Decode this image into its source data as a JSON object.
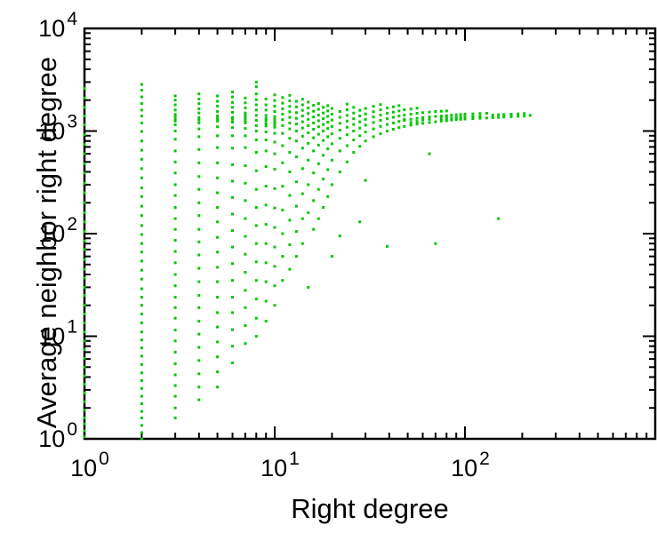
{
  "figure": {
    "background": "#ffffff"
  },
  "chart_data": {
    "type": "scatter",
    "title": "",
    "xlabel": "Right degree",
    "ylabel": "Average neighbor right degree",
    "x_scale": "log",
    "y_scale": "log",
    "xlim": [
      1,
      1000
    ],
    "ylim": [
      1,
      10000
    ],
    "grid": false,
    "legend": "none",
    "axis_color": "#000000",
    "marker": {
      "shape": "square",
      "size": 3,
      "color": "#00C800"
    },
    "x_ticks": [
      {
        "value": 1,
        "base": "10",
        "exp": "0"
      },
      {
        "value": 10,
        "base": "10",
        "exp": "1"
      },
      {
        "value": 100,
        "base": "10",
        "exp": "2"
      }
    ],
    "y_ticks": [
      {
        "value": 1,
        "base": "10",
        "exp": "0"
      },
      {
        "value": 10,
        "base": "10",
        "exp": "1"
      },
      {
        "value": 100,
        "base": "10",
        "exp": "2"
      },
      {
        "value": 1000,
        "base": "10",
        "exp": "3"
      },
      {
        "value": 10000,
        "base": "10",
        "exp": "4"
      }
    ],
    "minor_ticks_per_decade": [
      2,
      3,
      4,
      5,
      6,
      7,
      8,
      9
    ],
    "points_by_x": [
      {
        "x": 1,
        "y": [
          1.05,
          1.2,
          1.4,
          1.6,
          1.9,
          2.3,
          2.8,
          3.4,
          4.1,
          5,
          6.1,
          7.4,
          9,
          11,
          13.5,
          16.5,
          20,
          25,
          30,
          37,
          45,
          56,
          70,
          85,
          105,
          130,
          160,
          200,
          250,
          310,
          390,
          480,
          600,
          740,
          920,
          1150,
          1400,
          1700,
          2100,
          2600
        ]
      },
      {
        "x": 2,
        "y": [
          1,
          1.15,
          1.35,
          1.6,
          1.85,
          2.2,
          2.6,
          3.1,
          3.7,
          4.4,
          5.3,
          6.4,
          7.7,
          9.2,
          11,
          13.5,
          16.5,
          20,
          24,
          29,
          36,
          44,
          54,
          66,
          80,
          98,
          120,
          150,
          185,
          230,
          280,
          350,
          430,
          530,
          650,
          800,
          990,
          1200,
          1400,
          1600,
          1850,
          2150,
          2500,
          2850
        ]
      },
      {
        "x": 3,
        "y": [
          1.6,
          2,
          2.6,
          3.3,
          4.2,
          5.4,
          7,
          9,
          11.5,
          15,
          19,
          24,
          31,
          40,
          52,
          67,
          86,
          110,
          140,
          180,
          235,
          300,
          390,
          500,
          640,
          830,
          1000,
          1150,
          1300,
          1450,
          1600,
          1800,
          2000,
          2200,
          1250,
          1380
        ]
      },
      {
        "x": 4,
        "y": [
          2.4,
          3.2,
          4.3,
          5.8,
          7.8,
          10.5,
          14,
          19,
          25,
          34,
          46,
          62,
          83,
          110,
          150,
          200,
          270,
          360,
          490,
          660,
          880,
          1050,
          1200,
          1350,
          1500,
          1650,
          1850,
          2050,
          2300,
          1280
        ]
      },
      {
        "x": 5,
        "y": [
          3.2,
          4.5,
          6.3,
          8.8,
          12.3,
          17,
          24,
          34,
          47,
          66,
          92,
          130,
          180,
          250,
          350,
          490,
          690,
          900,
          1100,
          1250,
          1400,
          1550,
          1750,
          1950,
          2200,
          1320
        ]
      },
      {
        "x": 6,
        "y": [
          5.5,
          8,
          11.6,
          17,
          24,
          35,
          51,
          74,
          107,
          155,
          225,
          325,
          470,
          680,
          900,
          1080,
          1220,
          1360,
          1520,
          1700,
          1900,
          2150,
          2400,
          1300
        ]
      },
      {
        "x": 7,
        "y": [
          8.5,
          12.7,
          19,
          28,
          42,
          63,
          94,
          140,
          210,
          310,
          460,
          690,
          900,
          1060,
          1200,
          1340,
          1500,
          1680,
          1880,
          2100,
          1270,
          1420
        ]
      },
      {
        "x": 8,
        "y": [
          10,
          15,
          23,
          35,
          53,
          80,
          120,
          180,
          270,
          410,
          620,
          820,
          1000,
          1130,
          1270,
          1420,
          1600,
          1800,
          2020,
          2300,
          2700,
          3000
        ]
      },
      {
        "x": 9,
        "y": [
          14,
          22,
          34,
          52,
          80,
          123,
          190,
          290,
          450,
          640,
          820,
          980,
          1120,
          1260,
          1420,
          1600,
          1800,
          2050,
          1330,
          1180
        ]
      },
      {
        "x": 10,
        "y": [
          20,
          31,
          48,
          74,
          115,
          178,
          275,
          425,
          600,
          780,
          950,
          1090,
          1230,
          1380,
          1550,
          1750,
          1980,
          2250,
          1300,
          1160
        ]
      },
      {
        "x": 11,
        "y": [
          35,
          60,
          100,
          170,
          290,
          490,
          720,
          950,
          1130,
          1290,
          1460,
          1650,
          1870,
          2120
        ]
      },
      {
        "x": 12,
        "y": [
          45,
          78,
          135,
          235,
          400,
          620,
          850,
          1050,
          1200,
          1360,
          1540,
          1740,
          1970,
          2230
        ]
      },
      {
        "x": 13,
        "y": [
          60,
          105,
          185,
          320,
          560,
          800,
          1000,
          1170,
          1330,
          1510,
          1720,
          1950
        ]
      },
      {
        "x": 14,
        "y": [
          80,
          140,
          245,
          430,
          680,
          890,
          1070,
          1230,
          1400,
          1590,
          1800,
          2040
        ]
      },
      {
        "x": 15,
        "y": [
          30,
          160,
          300,
          520,
          760,
          960,
          1130,
          1300,
          1480,
          1680,
          1910
        ]
      },
      {
        "x": 16,
        "y": [
          110,
          210,
          390,
          640,
          860,
          1040,
          1200,
          1370,
          1560,
          1780
        ]
      },
      {
        "x": 17,
        "y": [
          140,
          270,
          480,
          730,
          930,
          1100,
          1260,
          1430,
          1630,
          1850
        ]
      },
      {
        "x": 18,
        "y": [
          180,
          340,
          580,
          810,
          1000,
          1160,
          1320,
          1500,
          1700
        ]
      },
      {
        "x": 19,
        "y": [
          230,
          420,
          670,
          880,
          1060,
          1220,
          1390,
          1570,
          1770
        ]
      },
      {
        "x": 20,
        "y": [
          60,
          300,
          520,
          750,
          940,
          1110,
          1280,
          1460,
          1660
        ]
      },
      {
        "x": 22,
        "y": [
          95,
          400,
          640,
          850,
          1020,
          1190,
          1360,
          1550
        ]
      },
      {
        "x": 24,
        "y": [
          500,
          720,
          920,
          1090,
          1250,
          1420,
          1610,
          1830
        ]
      },
      {
        "x": 26,
        "y": [
          620,
          820,
          1000,
          1160,
          1320,
          1500,
          1700
        ]
      },
      {
        "x": 28,
        "y": [
          130,
          710,
          900,
          1070,
          1230,
          1400,
          1590
        ]
      },
      {
        "x": 30,
        "y": [
          330,
          800,
          980,
          1140,
          1300,
          1470,
          1660
        ]
      },
      {
        "x": 33,
        "y": [
          880,
          1050,
          1210,
          1370,
          1540,
          1740
        ]
      },
      {
        "x": 36,
        "y": [
          940,
          1110,
          1270,
          1430,
          1610,
          1810
        ]
      },
      {
        "x": 39,
        "y": [
          75,
          1000,
          1160,
          1320,
          1490,
          1680
        ]
      },
      {
        "x": 42,
        "y": [
          1040,
          1200,
          1360,
          1530,
          1720
        ]
      },
      {
        "x": 45,
        "y": [
          1080,
          1240,
          1400,
          1570,
          1770
        ]
      },
      {
        "x": 48,
        "y": [
          1110,
          1270,
          1430,
          1610,
          1300
        ]
      },
      {
        "x": 52,
        "y": [
          1140,
          1300,
          1460,
          1640,
          1210
        ]
      },
      {
        "x": 56,
        "y": [
          1170,
          1330,
          1490,
          1670,
          1240
        ]
      },
      {
        "x": 60,
        "y": [
          1190,
          1350,
          1510,
          1280
        ]
      },
      {
        "x": 65,
        "y": [
          600,
          1210,
          1370,
          1530,
          1300
        ]
      },
      {
        "x": 70,
        "y": [
          80,
          1230,
          1390,
          1550
        ]
      },
      {
        "x": 75,
        "y": [
          1250,
          1400,
          1560,
          1320
        ]
      },
      {
        "x": 80,
        "y": [
          1260,
          1410,
          1570,
          1330
        ]
      },
      {
        "x": 85,
        "y": [
          1280,
          1430,
          1340
        ]
      },
      {
        "x": 90,
        "y": [
          1290,
          1440,
          1350
        ]
      },
      {
        "x": 95,
        "y": [
          1300,
          1450,
          1360
        ]
      },
      {
        "x": 100,
        "y": [
          1310,
          1460,
          1370
        ]
      },
      {
        "x": 110,
        "y": [
          1320,
          1470,
          1380
        ]
      },
      {
        "x": 120,
        "y": [
          1330,
          1480,
          1390
        ]
      },
      {
        "x": 130,
        "y": [
          1340,
          1490
        ]
      },
      {
        "x": 140,
        "y": [
          1350,
          1430
        ]
      },
      {
        "x": 150,
        "y": [
          140,
          1360,
          1440
        ]
      },
      {
        "x": 160,
        "y": [
          1370,
          1450
        ]
      },
      {
        "x": 175,
        "y": [
          1380,
          1460
        ]
      },
      {
        "x": 190,
        "y": [
          1390,
          1470
        ]
      },
      {
        "x": 205,
        "y": [
          1400,
          1480
        ]
      },
      {
        "x": 220,
        "y": [
          1420
        ]
      }
    ]
  }
}
